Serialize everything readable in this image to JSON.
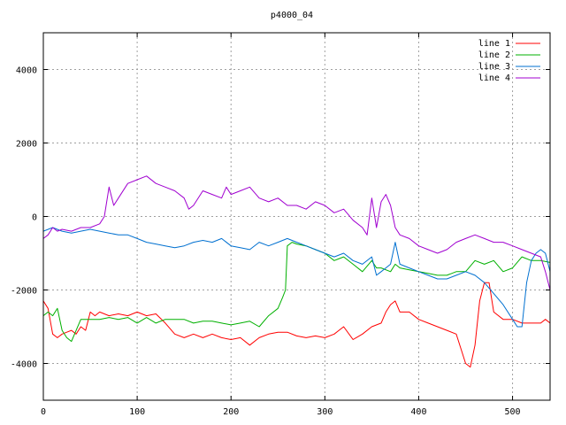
{
  "chart_data": {
    "type": "line",
    "title": "p4000_04",
    "xlabel": "",
    "ylabel": "",
    "xlim": [
      0,
      540
    ],
    "ylim": [
      -5000,
      5000
    ],
    "xticks": [
      0,
      100,
      200,
      300,
      400,
      500
    ],
    "yticks": [
      -4000,
      -2000,
      0,
      2000,
      4000
    ],
    "grid": true,
    "legend_position": "top-right",
    "series": [
      {
        "name": "line 1",
        "color": "#ff0000",
        "x": [
          0,
          5,
          10,
          15,
          20,
          25,
          30,
          35,
          40,
          45,
          50,
          55,
          60,
          70,
          80,
          90,
          100,
          110,
          120,
          130,
          140,
          150,
          160,
          170,
          180,
          190,
          200,
          210,
          220,
          230,
          240,
          250,
          260,
          270,
          280,
          290,
          300,
          310,
          320,
          330,
          340,
          350,
          360,
          365,
          370,
          375,
          380,
          390,
          400,
          410,
          420,
          430,
          440,
          445,
          450,
          455,
          460,
          465,
          470,
          475,
          480,
          490,
          500,
          510,
          520,
          530,
          535,
          540
        ],
        "y": [
          -2300,
          -2500,
          -3200,
          -3300,
          -3200,
          -3150,
          -3100,
          -3200,
          -3000,
          -3100,
          -2600,
          -2700,
          -2600,
          -2700,
          -2650,
          -2700,
          -2600,
          -2700,
          -2650,
          -2900,
          -3200,
          -3300,
          -3200,
          -3300,
          -3200,
          -3300,
          -3350,
          -3300,
          -3500,
          -3300,
          -3200,
          -3150,
          -3150,
          -3250,
          -3300,
          -3250,
          -3300,
          -3200,
          -3000,
          -3350,
          -3200,
          -3000,
          -2900,
          -2600,
          -2400,
          -2300,
          -2600,
          -2600,
          -2800,
          -2900,
          -3000,
          -3100,
          -3200,
          -3600,
          -4000,
          -4100,
          -3500,
          -2300,
          -1800,
          -1800,
          -2600,
          -2800,
          -2800,
          -2900,
          -2900,
          -2900,
          -2800,
          -2900
        ]
      },
      {
        "name": "line 2",
        "color": "#00b000",
        "x": [
          0,
          5,
          10,
          15,
          20,
          25,
          30,
          35,
          40,
          50,
          60,
          70,
          80,
          90,
          100,
          110,
          120,
          130,
          140,
          150,
          160,
          170,
          180,
          190,
          200,
          210,
          220,
          230,
          240,
          250,
          255,
          258,
          260,
          265,
          270,
          280,
          290,
          300,
          310,
          320,
          330,
          340,
          350,
          355,
          360,
          370,
          375,
          380,
          390,
          400,
          410,
          420,
          430,
          440,
          450,
          460,
          470,
          480,
          490,
          500,
          510,
          520,
          530,
          540
        ],
        "y": [
          -2700,
          -2600,
          -2700,
          -2500,
          -3100,
          -3300,
          -3400,
          -3100,
          -2800,
          -2800,
          -2800,
          -2750,
          -2800,
          -2750,
          -2900,
          -2750,
          -2900,
          -2800,
          -2800,
          -2800,
          -2900,
          -2850,
          -2850,
          -2900,
          -2950,
          -2900,
          -2850,
          -3000,
          -2700,
          -2500,
          -2200,
          -2000,
          -800,
          -700,
          -750,
          -800,
          -900,
          -1000,
          -1200,
          -1100,
          -1300,
          -1500,
          -1200,
          -1400,
          -1400,
          -1500,
          -1300,
          -1400,
          -1450,
          -1500,
          -1550,
          -1600,
          -1600,
          -1500,
          -1500,
          -1200,
          -1300,
          -1200,
          -1500,
          -1400,
          -1100,
          -1200,
          -1200,
          -1250
        ]
      },
      {
        "name": "line 3",
        "color": "#0070d0",
        "x": [
          0,
          10,
          20,
          30,
          40,
          50,
          60,
          70,
          80,
          90,
          100,
          110,
          120,
          130,
          140,
          150,
          160,
          170,
          180,
          190,
          200,
          210,
          220,
          230,
          240,
          250,
          260,
          270,
          280,
          290,
          300,
          310,
          320,
          330,
          340,
          350,
          355,
          360,
          365,
          370,
          375,
          380,
          390,
          400,
          410,
          420,
          430,
          440,
          450,
          460,
          470,
          480,
          490,
          500,
          505,
          510,
          515,
          520,
          525,
          530,
          535,
          540
        ],
        "y": [
          -400,
          -300,
          -400,
          -450,
          -400,
          -350,
          -400,
          -450,
          -500,
          -500,
          -600,
          -700,
          -750,
          -800,
          -850,
          -800,
          -700,
          -650,
          -700,
          -600,
          -800,
          -850,
          -900,
          -700,
          -800,
          -700,
          -600,
          -700,
          -800,
          -900,
          -1000,
          -1100,
          -1000,
          -1200,
          -1300,
          -1100,
          -1600,
          -1500,
          -1400,
          -1300,
          -700,
          -1300,
          -1400,
          -1500,
          -1600,
          -1700,
          -1700,
          -1600,
          -1500,
          -1600,
          -1800,
          -2100,
          -2400,
          -2800,
          -3000,
          -3000,
          -1800,
          -1200,
          -1000,
          -900,
          -1000,
          -1500
        ]
      },
      {
        "name": "line 4",
        "color": "#a000d0",
        "x": [
          0,
          5,
          10,
          15,
          20,
          30,
          40,
          50,
          60,
          65,
          70,
          75,
          80,
          90,
          100,
          110,
          120,
          130,
          140,
          150,
          155,
          160,
          170,
          180,
          190,
          195,
          200,
          210,
          220,
          230,
          240,
          250,
          260,
          270,
          280,
          290,
          300,
          310,
          320,
          330,
          340,
          345,
          350,
          355,
          360,
          365,
          370,
          375,
          380,
          390,
          400,
          410,
          420,
          430,
          440,
          450,
          460,
          470,
          480,
          490,
          500,
          510,
          520,
          530,
          535,
          540
        ],
        "y": [
          -600,
          -500,
          -300,
          -400,
          -350,
          -400,
          -300,
          -300,
          -200,
          0,
          800,
          300,
          500,
          900,
          1000,
          1100,
          900,
          800,
          700,
          500,
          200,
          300,
          700,
          600,
          500,
          800,
          600,
          700,
          800,
          500,
          400,
          500,
          300,
          300,
          200,
          400,
          300,
          100,
          200,
          -100,
          -300,
          -500,
          500,
          -300,
          400,
          600,
          300,
          -300,
          -500,
          -600,
          -800,
          -900,
          -1000,
          -900,
          -700,
          -600,
          -500,
          -600,
          -700,
          -700,
          -800,
          -900,
          -1000,
          -1100,
          -1500,
          -2000
        ]
      }
    ]
  }
}
